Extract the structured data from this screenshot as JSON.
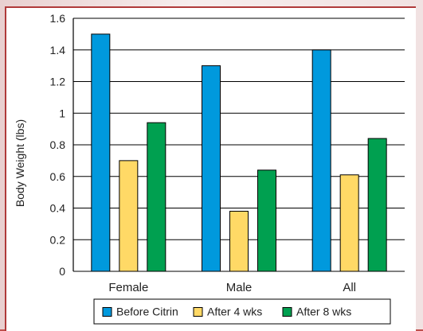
{
  "chart_data": {
    "type": "bar",
    "categories": [
      "Female",
      "Male",
      "All"
    ],
    "series": [
      {
        "name": "Before Citrin",
        "values": [
          1.5,
          1.3,
          1.4
        ],
        "color": "#0099dd"
      },
      {
        "name": "After 4 wks",
        "values": [
          0.7,
          0.38,
          0.61
        ],
        "color": "#ffd966"
      },
      {
        "name": "After 8 wks",
        "values": [
          0.94,
          0.64,
          0.84
        ],
        "color": "#00a050"
      }
    ],
    "ylabel": "Body Weight (lbs)",
    "xlabel": "",
    "ylim": [
      0,
      1.6
    ],
    "yticks": [
      "0",
      "0.2",
      "0.4",
      "0.6",
      "0.8",
      "1",
      "1.2",
      "1.4",
      "1.6"
    ],
    "grid": true,
    "legend": "bottom"
  }
}
